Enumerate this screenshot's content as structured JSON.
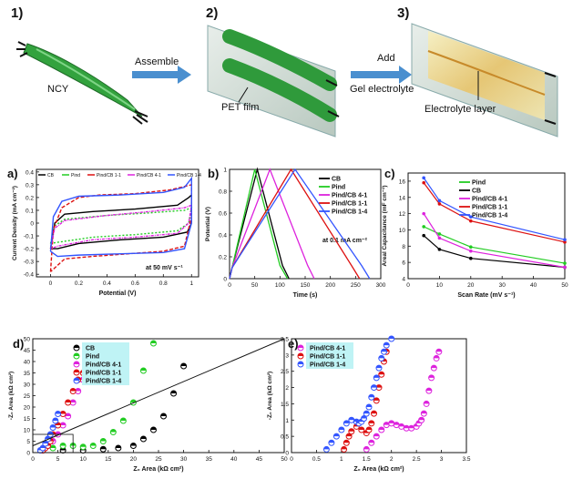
{
  "schematic": {
    "steps": [
      "1)",
      "2)",
      "3)"
    ],
    "ncy_label": "NCY",
    "assemble_label": "Assemble",
    "pet_label": "PET film",
    "add_label": "Add",
    "gel_label": "Gel electrolyte",
    "electrolyte_label": "Electrolyte layer"
  },
  "colors": {
    "CB": "#000000",
    "Pind": "#22cc22",
    "Pind/CB 4-1": "#dd22dd",
    "Pind/CB 1-1": "#dd1111",
    "Pind/CB 1-4": "#3355ff"
  },
  "chart_data": [
    {
      "id": "a",
      "panel_label": "a)",
      "type": "line",
      "xlabel": "Potential (V)",
      "ylabel": "Current Density (mA cm⁻²)",
      "xlim": [
        -0.1,
        1.05
      ],
      "ylim": [
        -0.42,
        0.42
      ],
      "xticks": [
        0.0,
        0.2,
        0.4,
        0.6,
        0.8,
        1.0
      ],
      "yticks": [
        -0.4,
        -0.3,
        -0.2,
        -0.1,
        0.0,
        0.1,
        0.2,
        0.3,
        0.4
      ],
      "annotation": "at 50 mV s⁻¹",
      "legend": [
        "CB",
        "Pind",
        "Pind/CB 1-1",
        "Pind/CB 4-1",
        "Pind/CB 1-4"
      ],
      "series": [
        {
          "name": "CB",
          "upper": [
            [
              0.0,
              -0.2
            ],
            [
              0.03,
              0.0
            ],
            [
              0.1,
              0.07
            ],
            [
              0.3,
              0.09
            ],
            [
              0.6,
              0.11
            ],
            [
              0.9,
              0.14
            ],
            [
              0.98,
              0.2
            ],
            [
              1.0,
              0.22
            ]
          ],
          "lower": [
            [
              1.0,
              0.22
            ],
            [
              1.0,
              0.0
            ],
            [
              0.97,
              -0.07
            ],
            [
              0.8,
              -0.11
            ],
            [
              0.5,
              -0.13
            ],
            [
              0.2,
              -0.16
            ],
            [
              0.05,
              -0.2
            ],
            [
              0.0,
              -0.2
            ]
          ]
        },
        {
          "name": "Pind",
          "upper": [
            [
              0.0,
              -0.16
            ],
            [
              0.03,
              -0.02
            ],
            [
              0.1,
              0.03
            ],
            [
              0.4,
              0.06
            ],
            [
              0.7,
              0.08
            ],
            [
              0.95,
              0.1
            ],
            [
              1.0,
              0.12
            ]
          ],
          "lower": [
            [
              1.0,
              0.12
            ],
            [
              0.98,
              0.0
            ],
            [
              0.9,
              -0.06
            ],
            [
              0.6,
              -0.09
            ],
            [
              0.3,
              -0.11
            ],
            [
              0.05,
              -0.15
            ],
            [
              0.0,
              -0.16
            ]
          ]
        },
        {
          "name": "Pind/CB 1-1",
          "upper": [
            [
              0.0,
              -0.38
            ],
            [
              0.02,
              -0.05
            ],
            [
              0.08,
              0.12
            ],
            [
              0.2,
              0.2
            ],
            [
              0.35,
              0.22
            ],
            [
              0.6,
              0.23
            ],
            [
              0.85,
              0.26
            ],
            [
              1.0,
              0.3
            ]
          ],
          "lower": [
            [
              1.0,
              0.3
            ],
            [
              1.0,
              0.05
            ],
            [
              0.95,
              -0.18
            ],
            [
              0.8,
              -0.22
            ],
            [
              0.55,
              -0.24
            ],
            [
              0.3,
              -0.26
            ],
            [
              0.1,
              -0.28
            ],
            [
              0.0,
              -0.38
            ]
          ]
        },
        {
          "name": "Pind/CB 4-1",
          "upper": [
            [
              0.0,
              -0.2
            ],
            [
              0.03,
              -0.04
            ],
            [
              0.1,
              0.02
            ],
            [
              0.4,
              0.06
            ],
            [
              0.7,
              0.09
            ],
            [
              0.95,
              0.12
            ],
            [
              1.0,
              0.14
            ]
          ],
          "lower": [
            [
              1.0,
              0.14
            ],
            [
              0.98,
              0.0
            ],
            [
              0.9,
              -0.08
            ],
            [
              0.6,
              -0.11
            ],
            [
              0.3,
              -0.13
            ],
            [
              0.05,
              -0.18
            ],
            [
              0.0,
              -0.2
            ]
          ]
        },
        {
          "name": "Pind/CB 1-4",
          "upper": [
            [
              0.0,
              -0.22
            ],
            [
              0.02,
              0.05
            ],
            [
              0.08,
              0.17
            ],
            [
              0.2,
              0.21
            ],
            [
              0.5,
              0.22
            ],
            [
              0.8,
              0.24
            ],
            [
              0.95,
              0.28
            ],
            [
              1.0,
              0.35
            ]
          ],
          "lower": [
            [
              1.0,
              0.35
            ],
            [
              1.0,
              0.0
            ],
            [
              0.95,
              -0.2
            ],
            [
              0.8,
              -0.23
            ],
            [
              0.5,
              -0.24
            ],
            [
              0.2,
              -0.25
            ],
            [
              0.05,
              -0.26
            ],
            [
              0.0,
              -0.22
            ]
          ]
        }
      ]
    },
    {
      "id": "b",
      "panel_label": "b)",
      "type": "line",
      "xlabel": "Time (s)",
      "ylabel": "Potential (V)",
      "xlim": [
        0,
        300
      ],
      "ylim": [
        0,
        1.0
      ],
      "xticks": [
        0,
        50,
        100,
        150,
        200,
        250,
        300
      ],
      "yticks": [
        0.0,
        0.2,
        0.4,
        0.6,
        0.8,
        1.0
      ],
      "annotation": "at 0.1 mA cm⁻²",
      "legend": [
        "CB",
        "Pind",
        "Pind/CB 4-1",
        "Pind/CB 1-1",
        "Pind/CB 1-4"
      ],
      "series": [
        {
          "name": "CB",
          "x": [
            0,
            5,
            55,
            105,
            118
          ],
          "y": [
            0,
            0.1,
            1.0,
            0.12,
            0
          ]
        },
        {
          "name": "Pind",
          "x": [
            0,
            5,
            50,
            100,
            115
          ],
          "y": [
            0,
            0.1,
            1.0,
            0.12,
            0
          ]
        },
        {
          "name": "Pind/CB 4-1",
          "x": [
            0,
            5,
            80,
            155,
            168
          ],
          "y": [
            0,
            0.1,
            1.0,
            0.12,
            0
          ]
        },
        {
          "name": "Pind/CB 1-1",
          "x": [
            0,
            5,
            122,
            242,
            258
          ],
          "y": [
            0,
            0.1,
            1.0,
            0.12,
            0
          ]
        },
        {
          "name": "Pind/CB 1-4",
          "x": [
            0,
            5,
            130,
            262,
            278
          ],
          "y": [
            0,
            0.1,
            1.0,
            0.12,
            0
          ]
        }
      ]
    },
    {
      "id": "c",
      "panel_label": "c)",
      "type": "line",
      "xlabel": "Scan Rate (mV s⁻¹)",
      "ylabel": "Areal Capacitance (mF cm⁻²)",
      "xlim": [
        0,
        50
      ],
      "ylim": [
        4,
        17
      ],
      "xticks": [
        0,
        10,
        20,
        30,
        40,
        50
      ],
      "yticks": [
        4,
        6,
        8,
        10,
        12,
        14,
        16
      ],
      "legend": [
        "Pind",
        "CB",
        "Pind/CB 4-1",
        "Pind/CB 1-1",
        "Pind/CB 1-4"
      ],
      "categories": [
        5,
        10,
        20,
        50
      ],
      "series": [
        {
          "name": "Pind",
          "values": [
            10.4,
            9.5,
            7.9,
            5.9
          ]
        },
        {
          "name": "CB",
          "values": [
            9.3,
            7.6,
            6.5,
            5.4
          ]
        },
        {
          "name": "Pind/CB 4-1",
          "values": [
            12.0,
            9.0,
            7.4,
            5.4
          ]
        },
        {
          "name": "Pind/CB 1-1",
          "values": [
            15.8,
            13.2,
            11.1,
            8.5
          ]
        },
        {
          "name": "Pind/CB 1-4",
          "values": [
            16.4,
            13.6,
            11.6,
            8.8
          ]
        }
      ]
    },
    {
      "id": "d",
      "panel_label": "d)",
      "type": "scatter",
      "xlabel": "Z₀ Area (kΩ cm²)",
      "ylabel": "-Z₀ Area (kΩ cm²)",
      "xlim": [
        0,
        50
      ],
      "ylim": [
        0,
        50
      ],
      "xticks": [
        0,
        5,
        10,
        15,
        20,
        25,
        30,
        35,
        40,
        45,
        50
      ],
      "yticks": [
        0,
        5,
        10,
        15,
        20,
        25,
        30,
        35,
        40,
        45,
        50
      ],
      "legend": [
        "CB",
        "Pind",
        "Pind/CB 4-1",
        "Pind/CB 1-1",
        "Pind/CB 1-4"
      ],
      "series": [
        {
          "name": "CB",
          "x": [
            2,
            6,
            10,
            14,
            17,
            20,
            22,
            24,
            26,
            28,
            30
          ],
          "y": [
            1,
            1,
            1,
            1.5,
            2,
            3,
            6,
            10,
            16,
            26,
            38
          ]
        },
        {
          "name": "Pind",
          "x": [
            2,
            4,
            6,
            8,
            10,
            12,
            14,
            16,
            18,
            20,
            22,
            24
          ],
          "y": [
            1,
            2,
            3,
            3,
            2.5,
            3,
            5,
            9,
            14,
            22,
            36,
            48
          ]
        },
        {
          "name": "Pind/CB 4-1",
          "x": [
            2,
            3,
            4,
            5,
            6,
            7,
            8,
            9,
            10,
            11
          ],
          "y": [
            1,
            3,
            5,
            8,
            12,
            16,
            22,
            27,
            32,
            36
          ]
        },
        {
          "name": "Pind/CB 1-1",
          "x": [
            2,
            2.5,
            3,
            3.5,
            4,
            5,
            6,
            7,
            8,
            9,
            10
          ],
          "y": [
            1,
            2,
            3,
            5,
            8,
            12,
            17,
            22,
            27,
            32,
            35
          ]
        },
        {
          "name": "Pind/CB 1-4",
          "x": [
            1.5,
            2,
            2.5,
            3,
            3.5,
            4,
            4.5,
            5
          ],
          "y": [
            1,
            2,
            4,
            6,
            8,
            11,
            14,
            17
          ]
        }
      ],
      "fit_line": {
        "x": [
          0,
          50
        ],
        "y": [
          3,
          50
        ]
      }
    },
    {
      "id": "e",
      "panel_label": "e)",
      "type": "scatter",
      "xlabel": "Z₀ Area (kΩ cm²)",
      "ylabel": "-Z₀ Area (kΩ cm²)",
      "xlim": [
        0,
        3.5
      ],
      "ylim": [
        0,
        3.5
      ],
      "xticks": [
        0.0,
        0.5,
        1.0,
        1.5,
        2.0,
        2.5,
        3.0,
        3.5
      ],
      "yticks": [
        0.0,
        0.5,
        1.0,
        1.5,
        2.0,
        2.5,
        3.0,
        3.5
      ],
      "legend": [
        "Pind/CB 4-1",
        "Pind/CB 1-1",
        "Pind/CB 1-4"
      ],
      "series": [
        {
          "name": "Pind/CB 4-1",
          "x": [
            1.5,
            1.6,
            1.7,
            1.8,
            1.9,
            2.0,
            2.1,
            2.2,
            2.3,
            2.4,
            2.5,
            2.55,
            2.6,
            2.65,
            2.7,
            2.75,
            2.8,
            2.85,
            2.9,
            2.95
          ],
          "y": [
            0.1,
            0.3,
            0.5,
            0.7,
            0.85,
            0.9,
            0.85,
            0.8,
            0.75,
            0.75,
            0.8,
            0.9,
            1.0,
            1.2,
            1.5,
            1.9,
            2.3,
            2.6,
            2.9,
            3.1
          ]
        },
        {
          "name": "Pind/CB 1-1",
          "x": [
            1.05,
            1.1,
            1.15,
            1.2,
            1.3,
            1.4,
            1.5,
            1.55,
            1.6,
            1.65,
            1.7,
            1.75,
            1.8,
            1.85,
            1.9
          ],
          "y": [
            0.1,
            0.3,
            0.5,
            0.65,
            0.8,
            0.7,
            0.6,
            0.7,
            0.9,
            1.2,
            1.6,
            2.0,
            2.4,
            2.8,
            3.1
          ]
        },
        {
          "name": "Pind/CB 1-4",
          "x": [
            0.7,
            0.8,
            0.9,
            1.0,
            1.1,
            1.2,
            1.3,
            1.35,
            1.4,
            1.45,
            1.5,
            1.55,
            1.6,
            1.65,
            1.7,
            1.75,
            1.8,
            1.85,
            1.9,
            2.0
          ],
          "y": [
            0.1,
            0.3,
            0.5,
            0.7,
            0.9,
            1.0,
            0.95,
            0.9,
            0.95,
            1.05,
            1.2,
            1.4,
            1.7,
            2.0,
            2.3,
            2.6,
            2.9,
            3.1,
            3.3,
            3.5
          ]
        }
      ]
    }
  ]
}
